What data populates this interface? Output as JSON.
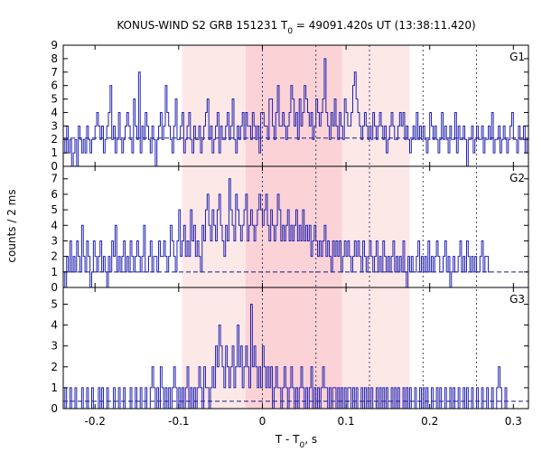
{
  "chart_data": {
    "type": "line",
    "title": {
      "main": "KONUS-WIND S2 GRB 151231 T",
      "sub": "0",
      "rest": " = 49091.420s UT (13:38:11.420)"
    },
    "xlabel": {
      "main": "T - T",
      "sub": "0",
      "rest": ", s"
    },
    "ylabel": "counts / 2 ms",
    "xlim": [
      -0.238,
      0.318
    ],
    "xticks": [
      -0.2,
      -0.1,
      0,
      0.1,
      0.2,
      0.3
    ],
    "xtick_labels": [
      "-0.2",
      "-0.1",
      "0",
      "0.1",
      "0.2",
      "0.3"
    ],
    "shaded_regions": [
      {
        "x": [
          -0.096,
          0.176
        ],
        "color": "#fde8e8"
      },
      {
        "x": [
          -0.02,
          0.095
        ],
        "color": "#fbd2d6"
      }
    ],
    "dotted_vlines": [
      0.0,
      0.064,
      0.128,
      0.192,
      0.256
    ],
    "line_color": "#2020b0",
    "background_color": "#1a1a80",
    "bin_width": 0.002,
    "panels": [
      {
        "name": "G1",
        "ylim": [
          0,
          9
        ],
        "yticks": [
          0,
          1,
          2,
          3,
          4,
          5,
          6,
          7,
          8,
          9
        ],
        "background_level": 2.1,
        "values": [
          2,
          1,
          3,
          1,
          2,
          0,
          1,
          2,
          0,
          3,
          2,
          1,
          2,
          1,
          3,
          2,
          1,
          2,
          2,
          3,
          4,
          3,
          2,
          3,
          1,
          2,
          3,
          4,
          6,
          2,
          3,
          1,
          2,
          4,
          2,
          1,
          2,
          3,
          4,
          3,
          2,
          1,
          5,
          3,
          2,
          7,
          1,
          3,
          2,
          4,
          3,
          2,
          1,
          3,
          2,
          0,
          2,
          3,
          4,
          2,
          3,
          6,
          4,
          3,
          2,
          1,
          3,
          5,
          2,
          2,
          3,
          4,
          1,
          2,
          3,
          4,
          2,
          1,
          3,
          2,
          2,
          3,
          1,
          2,
          3,
          4,
          5,
          2,
          3,
          1,
          2,
          3,
          4,
          1,
          3,
          2,
          2,
          3,
          4,
          2,
          3,
          5,
          2,
          1,
          3,
          2,
          3,
          4,
          2,
          4,
          3,
          3,
          2,
          4,
          3,
          2,
          3,
          1,
          4,
          4,
          3,
          3,
          2,
          5,
          5,
          3,
          2,
          4,
          6,
          3,
          3,
          4,
          3,
          2,
          3,
          4,
          6,
          5,
          3,
          4,
          2,
          5,
          3,
          4,
          6,
          5,
          4,
          3,
          4,
          2,
          3,
          5,
          4,
          3,
          4,
          5,
          8,
          4,
          3,
          2,
          4,
          3,
          5,
          3,
          2,
          4,
          3,
          2,
          5,
          4,
          3,
          3,
          4,
          6,
          7,
          5,
          4,
          3,
          2,
          3,
          4,
          3,
          2,
          3,
          2,
          4,
          3,
          2,
          3,
          4,
          3,
          2,
          3,
          1,
          2,
          3,
          4,
          3,
          2,
          2,
          3,
          4,
          3,
          4,
          2,
          3,
          2,
          1,
          2,
          3,
          2,
          4,
          2,
          3,
          2,
          3,
          2,
          1,
          2,
          4,
          3,
          2,
          3,
          2,
          1,
          2,
          4,
          2,
          3,
          2,
          1,
          3,
          2,
          2,
          4,
          1,
          3,
          2,
          2,
          3,
          2,
          0,
          2,
          2,
          3,
          1,
          2,
          3,
          2,
          2,
          3,
          1,
          2,
          2,
          3,
          2,
          4,
          1,
          2,
          2,
          3,
          1,
          2,
          3,
          2,
          1,
          2,
          3,
          4,
          2,
          2,
          1,
          3,
          2,
          2,
          3,
          1,
          2
        ]
      },
      {
        "name": "G2",
        "ylim": [
          0,
          7.8
        ],
        "yticks": [
          0,
          1,
          2,
          3,
          4,
          5,
          6,
          7
        ],
        "background_level": 1.0,
        "values": [
          1,
          0,
          2,
          1,
          3,
          1,
          2,
          1,
          3,
          2,
          1,
          4,
          2,
          1,
          3,
          2,
          0,
          1,
          3,
          2,
          1,
          2,
          3,
          1,
          2,
          1,
          0,
          2,
          1,
          3,
          2,
          4,
          1,
          2,
          1,
          2,
          3,
          1,
          2,
          1,
          3,
          2,
          1,
          2,
          3,
          2,
          1,
          2,
          4,
          1,
          1,
          2,
          3,
          1,
          2,
          2,
          1,
          3,
          2,
          2,
          3,
          2,
          1,
          2,
          4,
          3,
          2,
          1,
          3,
          5,
          2,
          3,
          4,
          2,
          3,
          2,
          5,
          3,
          4,
          2,
          3,
          2,
          1,
          4,
          3,
          5,
          6,
          4,
          3,
          5,
          4,
          3,
          5,
          6,
          4,
          3,
          2,
          4,
          3,
          7,
          5,
          4,
          3,
          6,
          5,
          4,
          3,
          4,
          5,
          6,
          3,
          4,
          5,
          4,
          3,
          4,
          5,
          6,
          5,
          4,
          5,
          6,
          4,
          3,
          5,
          4,
          3,
          4,
          6,
          5,
          3,
          4,
          3,
          4,
          5,
          3,
          4,
          3,
          4,
          5,
          3,
          4,
          3,
          5,
          3,
          4,
          3,
          4,
          2,
          3,
          4,
          3,
          2,
          3,
          2,
          3,
          4,
          2,
          3,
          2,
          1,
          3,
          2,
          3,
          2,
          3,
          1,
          2,
          3,
          2,
          3,
          2,
          1,
          2,
          3,
          2,
          3,
          2,
          1,
          3,
          2,
          1,
          2,
          3,
          2,
          1,
          2,
          3,
          1,
          2,
          1,
          3,
          2,
          1,
          2,
          1,
          2,
          3,
          1,
          2,
          1,
          2,
          1,
          3,
          1,
          0,
          2,
          1,
          2,
          1,
          1,
          2,
          3,
          1,
          2,
          1,
          2,
          1,
          3,
          1,
          2,
          1,
          2,
          3,
          2,
          1,
          1,
          2,
          3,
          1,
          2,
          0,
          1,
          2,
          1,
          1,
          2,
          3,
          1,
          2,
          1,
          3,
          2,
          1,
          2,
          1,
          2,
          1,
          1,
          2,
          3,
          1,
          2,
          2,
          1
        ]
      },
      {
        "name": "G3",
        "ylim": [
          0,
          5.8
        ],
        "yticks": [
          0,
          1,
          2,
          3,
          4,
          5
        ],
        "background_level": 0.35,
        "values": [
          0,
          1,
          0,
          0,
          1,
          0,
          0,
          1,
          0,
          0,
          0,
          1,
          0,
          0,
          1,
          0,
          0,
          1,
          0,
          0,
          0,
          1,
          0,
          1,
          0,
          0,
          1,
          0,
          0,
          0,
          1,
          0,
          0,
          1,
          0,
          0,
          1,
          0,
          0,
          0,
          1,
          0,
          0,
          1,
          0,
          0,
          1,
          0,
          0,
          1,
          0,
          0,
          1,
          2,
          1,
          0,
          1,
          0,
          2,
          1,
          0,
          1,
          0,
          1,
          0,
          1,
          2,
          1,
          0,
          1,
          0,
          1,
          0,
          1,
          2,
          0,
          1,
          0,
          1,
          0,
          1,
          2,
          1,
          0,
          2,
          1,
          1,
          0,
          1,
          2,
          1,
          3,
          2,
          4,
          3,
          2,
          1,
          3,
          2,
          1,
          2,
          3,
          1,
          2,
          4,
          2,
          3,
          1,
          2,
          3,
          2,
          1,
          5,
          2,
          3,
          2,
          1,
          2,
          1,
          3,
          2,
          1,
          2,
          1,
          2,
          0,
          1,
          2,
          1,
          1,
          0,
          1,
          2,
          1,
          0,
          1,
          2,
          1,
          0,
          1,
          0,
          1,
          2,
          1,
          0,
          1,
          0,
          1,
          2,
          0,
          1,
          0,
          1,
          0,
          1,
          2,
          1,
          1,
          0,
          1,
          0,
          1,
          1,
          0,
          1,
          0,
          1,
          0,
          1,
          0,
          1,
          1,
          0,
          1,
          0,
          1,
          0,
          0,
          1,
          0,
          1,
          0,
          1,
          0,
          1,
          0,
          0,
          1,
          0,
          1,
          0,
          1,
          0,
          1,
          0,
          0,
          1,
          0,
          1,
          0,
          1,
          0,
          0,
          1,
          0,
          1,
          0,
          1,
          0,
          0,
          1,
          0,
          0,
          1,
          0,
          1,
          0,
          1,
          0,
          0,
          1,
          0,
          0,
          1,
          0,
          1,
          0,
          0,
          1,
          0,
          0,
          1,
          0,
          1,
          0,
          0,
          1,
          0,
          0,
          1,
          0,
          1,
          0,
          0,
          1,
          0,
          0,
          1,
          0,
          0,
          1,
          0,
          0,
          1,
          0,
          0,
          1,
          0,
          0,
          1,
          2,
          1,
          0,
          0,
          1,
          0,
          0
        ]
      }
    ]
  }
}
